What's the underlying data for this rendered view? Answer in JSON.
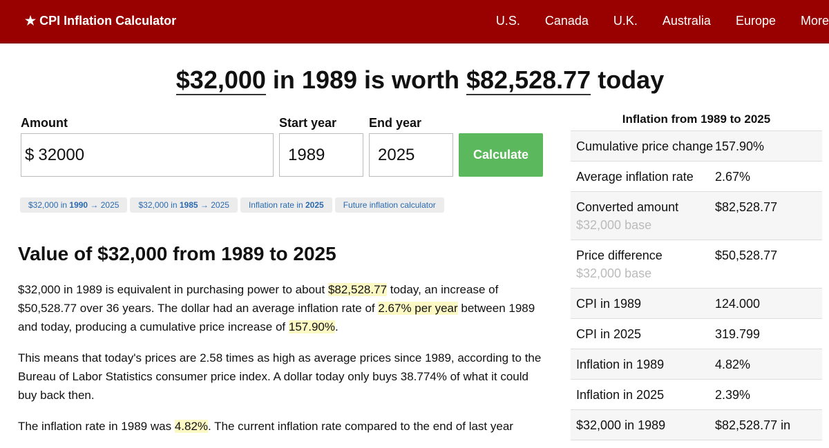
{
  "nav": {
    "brand": "★ CPI Inflation Calculator",
    "links": [
      "U.S.",
      "Canada",
      "U.K.",
      "Australia",
      "Europe",
      "More"
    ]
  },
  "headline": [
    {
      "text": "$32,000",
      "underline": true
    },
    {
      "text": " in 1989 is worth "
    },
    {
      "text": "$82,528.77",
      "underline": true
    },
    {
      "text": " today"
    }
  ],
  "form": {
    "fields": [
      {
        "label": "Amount",
        "prefix": "$",
        "value": "32000"
      },
      {
        "label": "Start year",
        "value": "1989"
      },
      {
        "label": "End year",
        "value": "2025"
      }
    ],
    "button": "Calculate"
  },
  "quick_links": [
    [
      {
        "text": "$32,000 in "
      },
      {
        "text": "1990",
        "bold": true
      },
      {
        "text": " → 2025"
      }
    ],
    [
      {
        "text": "$32,000 in "
      },
      {
        "text": "1985",
        "bold": true
      },
      {
        "text": " → 2025"
      }
    ],
    [
      {
        "text": "Inflation rate in "
      },
      {
        "text": "2025",
        "bold": true
      }
    ],
    [
      {
        "text": "Future inflation calculator"
      }
    ]
  ],
  "article": {
    "heading": "Value of $32,000 from 1989 to 2025",
    "paragraphs": [
      [
        {
          "text": "$32,000 in 1989 is equivalent in purchasing power to about "
        },
        {
          "text": "$82,528.77",
          "highlight": true
        },
        {
          "text": " today, an increase of $50,528.77 over 36 years. The dollar had an average inflation rate of "
        },
        {
          "text": "2.67% per year",
          "highlight": true
        },
        {
          "text": " between 1989 and today, producing a cumulative price increase of "
        },
        {
          "text": "157.90%",
          "highlight": true
        },
        {
          "text": "."
        }
      ],
      [
        {
          "text": "This means that today's prices are 2.58 times as high as average prices since 1989, according to the Bureau of Labor Statistics consumer price index. A dollar today only buys 38.774% of what it could buy back then."
        }
      ],
      [
        {
          "text": "The inflation rate in 1989 was "
        },
        {
          "text": "4.82%",
          "highlight": true
        },
        {
          "text": ". The current inflation rate compared to the end of last year"
        }
      ]
    ]
  },
  "sidebar": {
    "title": "Inflation from 1989 to 2025",
    "rows": [
      {
        "label": "Cumulative price change",
        "value": "157.90%"
      },
      {
        "label": "Average inflation rate",
        "value": "2.67%"
      },
      {
        "label": "Converted amount",
        "sublabel": "$32,000 base",
        "value": "$82,528.77"
      },
      {
        "label": "Price difference",
        "sublabel": "$32,000 base",
        "value": "$50,528.77"
      },
      {
        "label": "CPI in 1989",
        "value": "124.000"
      },
      {
        "label": "CPI in 2025",
        "value": "319.799"
      },
      {
        "label": "Inflation in 1989",
        "value": "4.82%"
      },
      {
        "label": "Inflation in 2025",
        "value": "2.39%"
      },
      {
        "label": "$32,000 in 1989",
        "value": "$82,528.77 in"
      }
    ]
  }
}
